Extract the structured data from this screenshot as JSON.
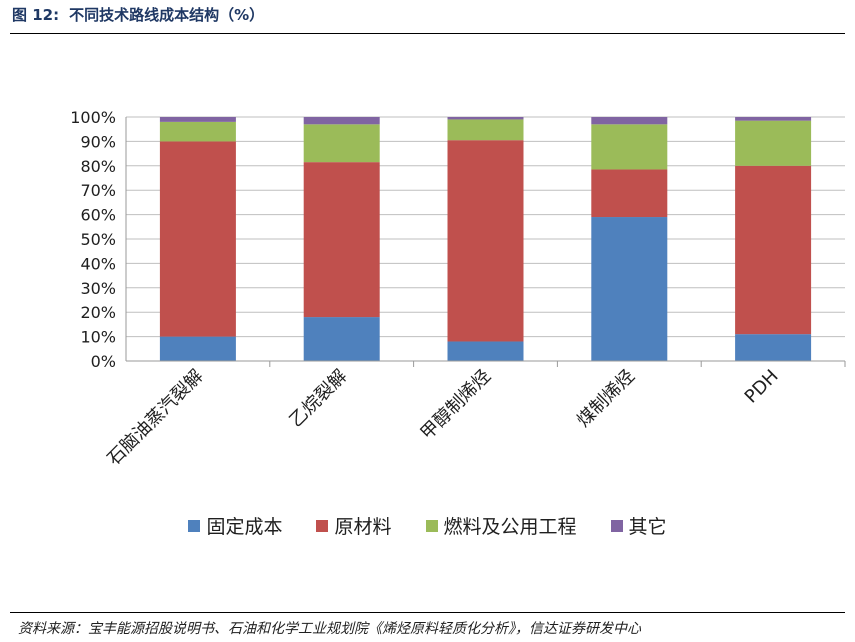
{
  "header": {
    "figure_number": "图 12:",
    "title": "不同技术路线成本结构（%）"
  },
  "footer": {
    "source": "资料来源：宝丰能源招股说明书、石油和化学工业规划院《烯烃原料轻质化分析》，信达证券研发中心"
  },
  "colors": {
    "固定成本": "#4f81bd",
    "原材料": "#c0504d",
    "燃料及公用工程": "#9bbb59",
    "其它": "#8064a2"
  },
  "chart_data": {
    "type": "bar",
    "stacked": true,
    "categories": [
      "石脑油蒸汽裂解",
      "乙烷裂解",
      "甲醇制烯烃",
      "煤制烯烃",
      "PDH"
    ],
    "series": [
      {
        "name": "固定成本",
        "values": [
          10,
          18,
          8,
          59,
          11
        ]
      },
      {
        "name": "原材料",
        "values": [
          80,
          63.5,
          82.5,
          19.5,
          69
        ]
      },
      {
        "name": "燃料及公用工程",
        "values": [
          8,
          15.5,
          8.5,
          18.5,
          18.5
        ]
      },
      {
        "name": "其它",
        "values": [
          2,
          3,
          1,
          3,
          1.5
        ]
      }
    ],
    "y_ticks": [
      "0%",
      "10%",
      "20%",
      "30%",
      "40%",
      "50%",
      "60%",
      "70%",
      "80%",
      "90%",
      "100%"
    ],
    "ylim": [
      0,
      100
    ],
    "grid": true,
    "legend_position": "bottom"
  }
}
